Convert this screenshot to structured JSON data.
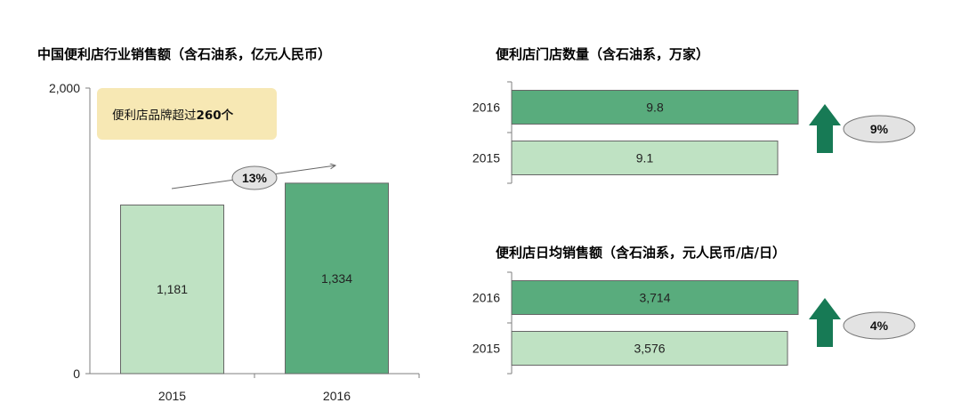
{
  "colors": {
    "light_green": "#bfe2c3",
    "dark_green": "#59ac7d",
    "arrow_green": "#177a55",
    "bar_border": "#666666",
    "annotation_bg": "#f7e8b4",
    "badge_fill": "#e3e3e3"
  },
  "chart_data": [
    {
      "type": "bar",
      "title": "中国便利店行业销售额（含石油系，亿元人民币）",
      "categories": [
        "2015",
        "2016"
      ],
      "values": [
        1181,
        1334
      ],
      "value_labels": [
        "1,181",
        "1,334"
      ],
      "ylim": [
        0,
        2000
      ],
      "yticks": [
        "0",
        "2,000"
      ],
      "annotation": {
        "text": "便利店品牌超过",
        "bold": "260个"
      },
      "growth_label": "13%"
    },
    {
      "type": "bar",
      "orientation": "horizontal",
      "title": "便利店门店数量（含石油系，万家）",
      "categories": [
        "2016",
        "2015"
      ],
      "values": [
        9.8,
        9.1
      ],
      "value_labels": [
        "9.8",
        "9.1"
      ],
      "growth_label": "9%"
    },
    {
      "type": "bar",
      "orientation": "horizontal",
      "title": "便利店日均销售额（含石油系，元人民币/店/日）",
      "categories": [
        "2016",
        "2015"
      ],
      "values": [
        3714,
        3576
      ],
      "value_labels": [
        "3,714",
        "3,576"
      ],
      "growth_label": "4%"
    }
  ]
}
